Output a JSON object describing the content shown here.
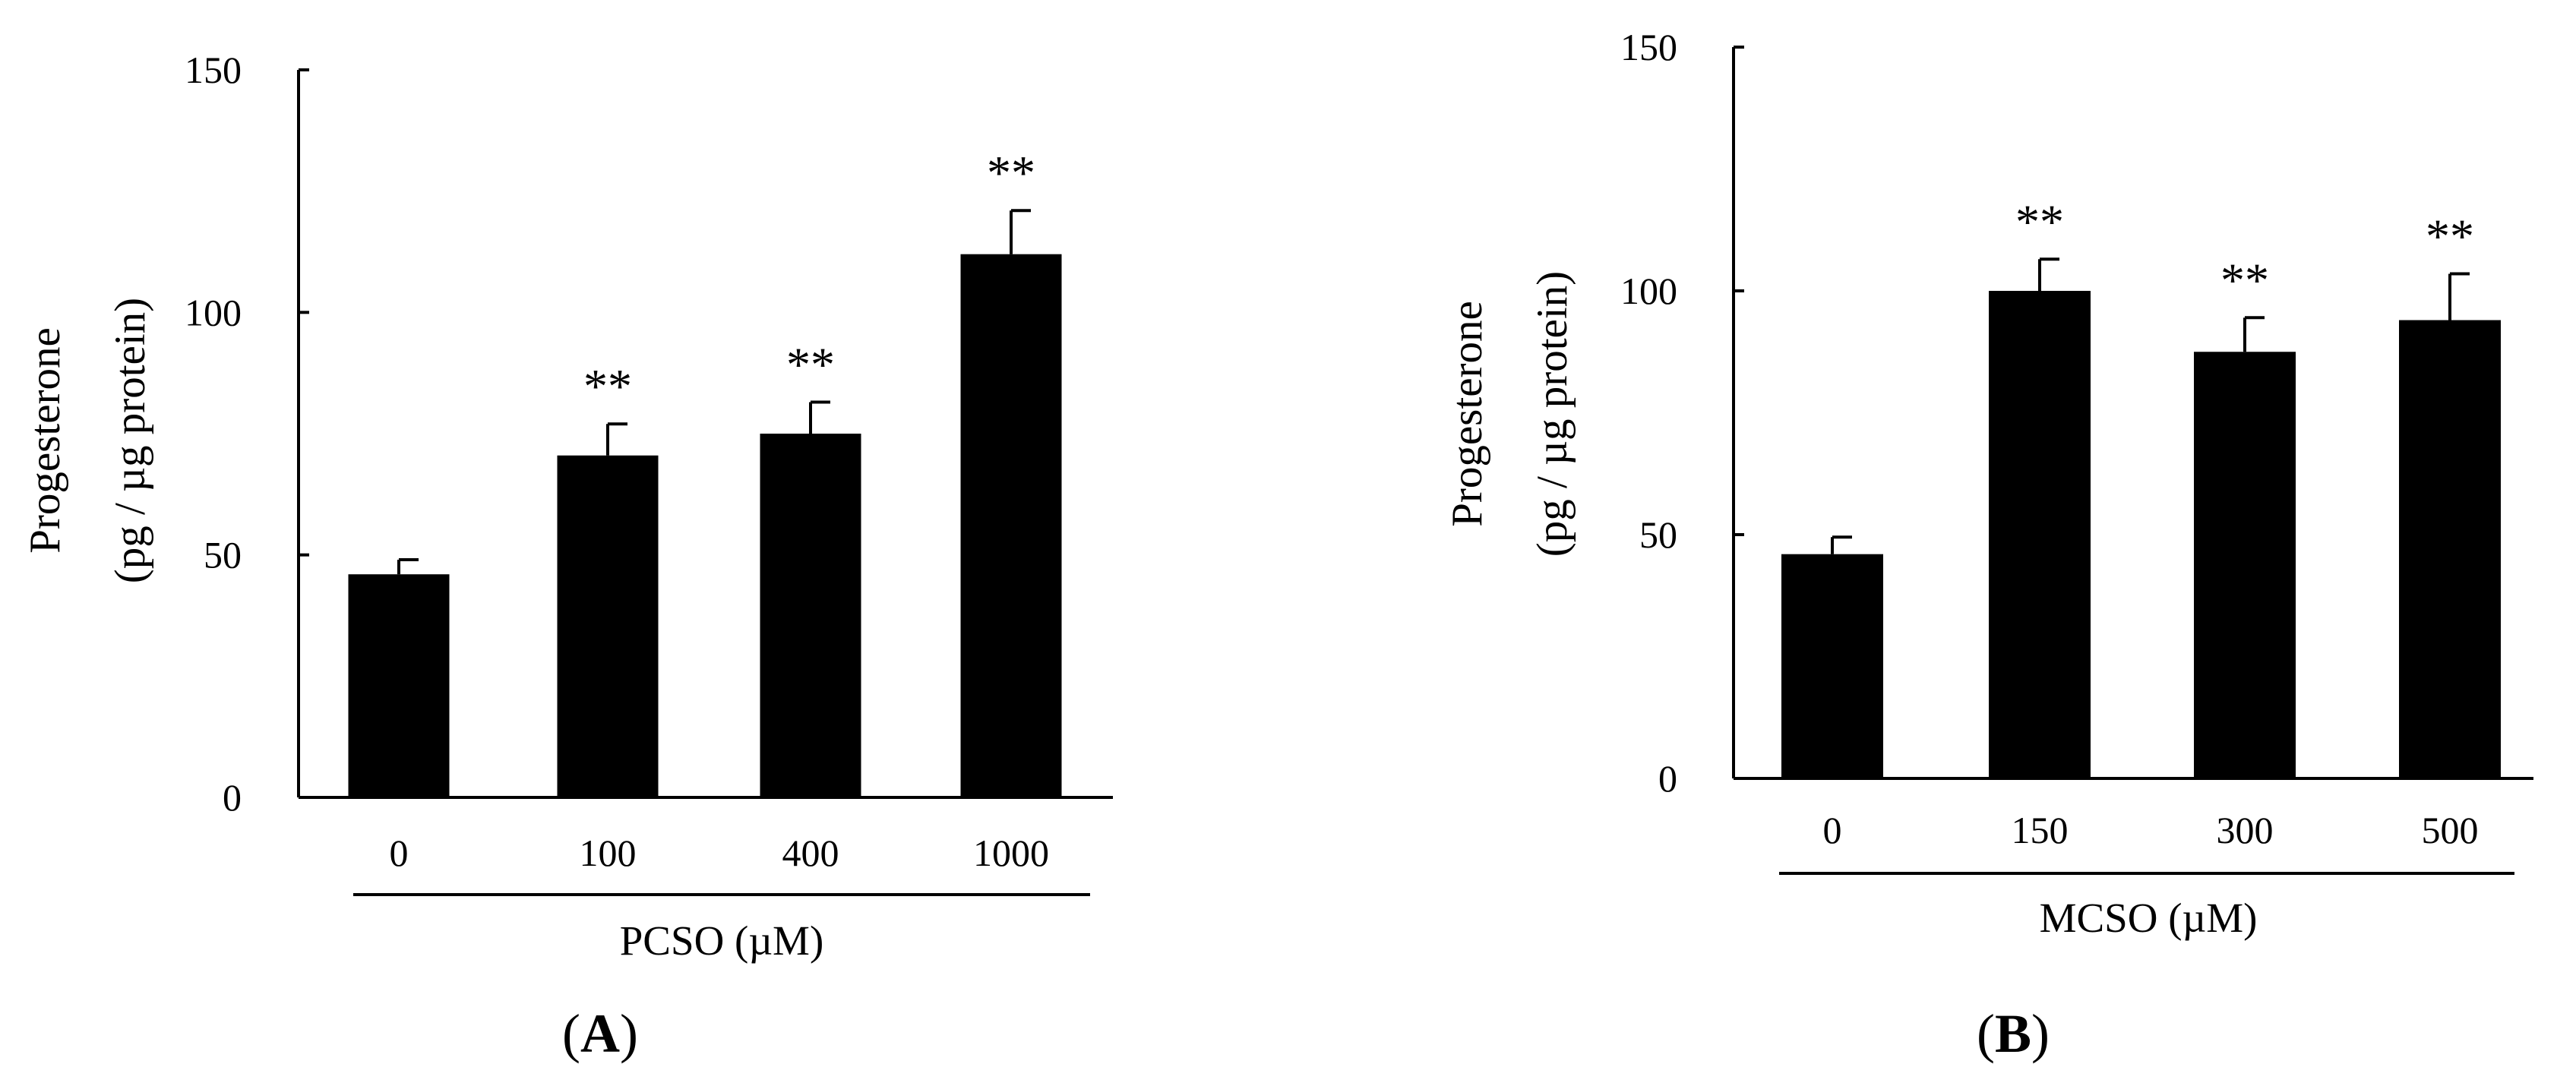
{
  "chart_data": [
    {
      "type": "bar",
      "panel_label": "A",
      "categories": [
        "0",
        "100",
        "400",
        "1000"
      ],
      "values": [
        46,
        70.5,
        75,
        112
      ],
      "errors": [
        3,
        6.5,
        6.5,
        9
      ],
      "significance": [
        "",
        "**",
        "**",
        "**"
      ],
      "ylabel_line1": "Progesterone",
      "ylabel_line2": "(pg / µg protein)",
      "xlabel": "PCSO (µM)",
      "ylim": [
        0,
        150
      ],
      "yticks": [
        0,
        50,
        100,
        150
      ],
      "grid": false,
      "bar_color": "#000000"
    },
    {
      "type": "bar",
      "panel_label": "B",
      "categories": [
        "0",
        "150",
        "300",
        "500"
      ],
      "values": [
        46,
        100,
        87.5,
        94
      ],
      "errors": [
        3.5,
        6.5,
        7,
        9.5
      ],
      "significance": [
        "",
        "**",
        "**",
        "**"
      ],
      "ylabel_line1": "Progesterone",
      "ylabel_line2": "(pg / µg protein)",
      "xlabel": "MCSO (µM)",
      "ylim": [
        0,
        150
      ],
      "yticks": [
        0,
        50,
        100,
        150
      ],
      "grid": false,
      "bar_color": "#000000"
    }
  ]
}
